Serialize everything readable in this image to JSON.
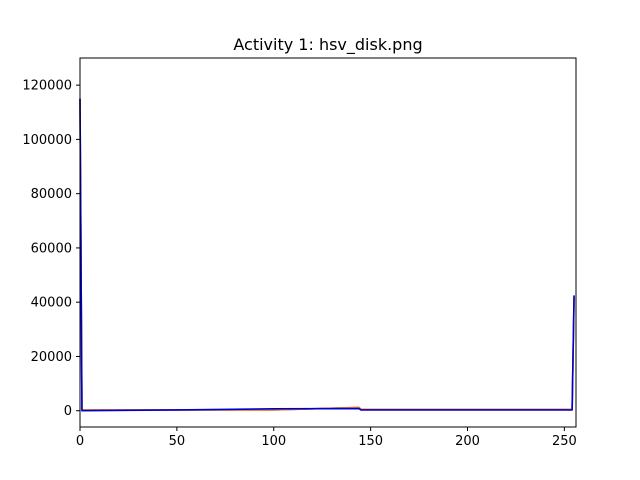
{
  "chart_data": {
    "type": "line",
    "title": "Activity 1: hsv_disk.png",
    "xlabel": "",
    "ylabel": "",
    "xlim": [
      0,
      256
    ],
    "ylim": [
      -6000,
      130000
    ],
    "xticks": [
      0,
      50,
      100,
      150,
      200,
      250
    ],
    "yticks": [
      0,
      20000,
      40000,
      60000,
      80000,
      100000,
      120000
    ],
    "grid": false,
    "legend": "none",
    "series": [
      {
        "color": "#1f77b4",
        "x": [
          0,
          1,
          50,
          100,
          144,
          145,
          200,
          254,
          255
        ],
        "y": [
          115000,
          300,
          300,
          300,
          1200,
          500,
          500,
          500,
          42000
        ]
      },
      {
        "color": "#ff7f0e",
        "x": [
          0,
          1,
          50,
          100,
          144,
          145,
          200,
          254,
          255
        ],
        "y": [
          115000,
          300,
          300,
          300,
          1200,
          500,
          500,
          500,
          42000
        ]
      },
      {
        "color": "#0000cc",
        "x": [
          0,
          1,
          50,
          100,
          144,
          145,
          200,
          254,
          255
        ],
        "y": [
          115000,
          0,
          300,
          700,
          800,
          300,
          300,
          300,
          42500
        ]
      }
    ]
  }
}
